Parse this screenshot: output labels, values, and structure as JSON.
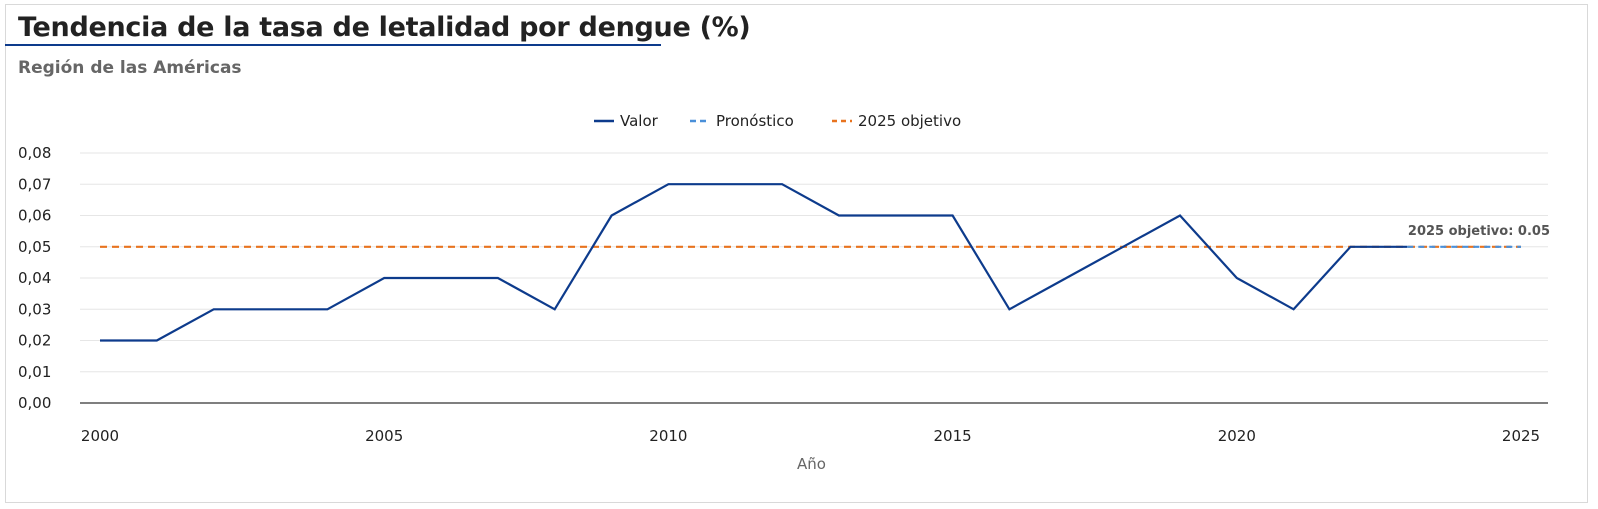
{
  "header": {
    "title": "Tendencia de la tasa de letalidad por dengue (%)",
    "subtitle": "Región de las Américas"
  },
  "colors": {
    "valor": "#0d3b8c",
    "pronostico": "#4a90d9",
    "objetivo": "#e8731f",
    "grid": "#e6e6e6",
    "axis": "#333333",
    "text": "#222222",
    "muted": "#666666"
  },
  "chart_data": {
    "type": "line",
    "title": "Tendencia de la tasa de letalidad por dengue (%)",
    "subtitle": "Región de las Américas",
    "xlabel": "Año",
    "ylabel": "",
    "xlim": [
      2000,
      2025
    ],
    "ylim": [
      0,
      0.08
    ],
    "x_ticks": [
      2000,
      2005,
      2010,
      2015,
      2020,
      2025
    ],
    "x_tick_labels": [
      "2000",
      "2005",
      "2010",
      "2015",
      "2020",
      "2025"
    ],
    "y_ticks": [
      0,
      0.01,
      0.02,
      0.03,
      0.04,
      0.05,
      0.06,
      0.07,
      0.08
    ],
    "y_tick_labels": [
      "0,00",
      "0,01",
      "0,02",
      "0,03",
      "0,04",
      "0,05",
      "0,06",
      "0,07",
      "0,08"
    ],
    "grid": true,
    "legend_position": "top-center",
    "legend": [
      "Valor",
      "Pronóstico",
      "2025 objetivo"
    ],
    "series": [
      {
        "name": "Valor",
        "style": "solid",
        "x": [
          2000,
          2001,
          2002,
          2003,
          2004,
          2005,
          2006,
          2007,
          2008,
          2009,
          2010,
          2011,
          2012,
          2013,
          2014,
          2015,
          2016,
          2017,
          2018,
          2019,
          2020,
          2021,
          2022,
          2023
        ],
        "values": [
          0.02,
          0.02,
          0.03,
          0.03,
          0.03,
          0.04,
          0.04,
          0.04,
          0.03,
          0.06,
          0.07,
          0.07,
          0.07,
          0.06,
          0.06,
          0.06,
          0.03,
          0.04,
          0.05,
          0.06,
          0.04,
          0.03,
          0.05,
          0.05
        ]
      },
      {
        "name": "Pronóstico",
        "style": "dashed",
        "x": [
          2023,
          2024,
          2025
        ],
        "values": [
          0.05,
          0.05,
          0.05
        ]
      },
      {
        "name": "2025 objetivo",
        "style": "dashed",
        "x": [
          2000,
          2025
        ],
        "values": [
          0.05,
          0.05
        ]
      }
    ],
    "annotation": {
      "text": "2025 objetivo: 0.05",
      "x": 2025,
      "y": 0.05
    }
  }
}
